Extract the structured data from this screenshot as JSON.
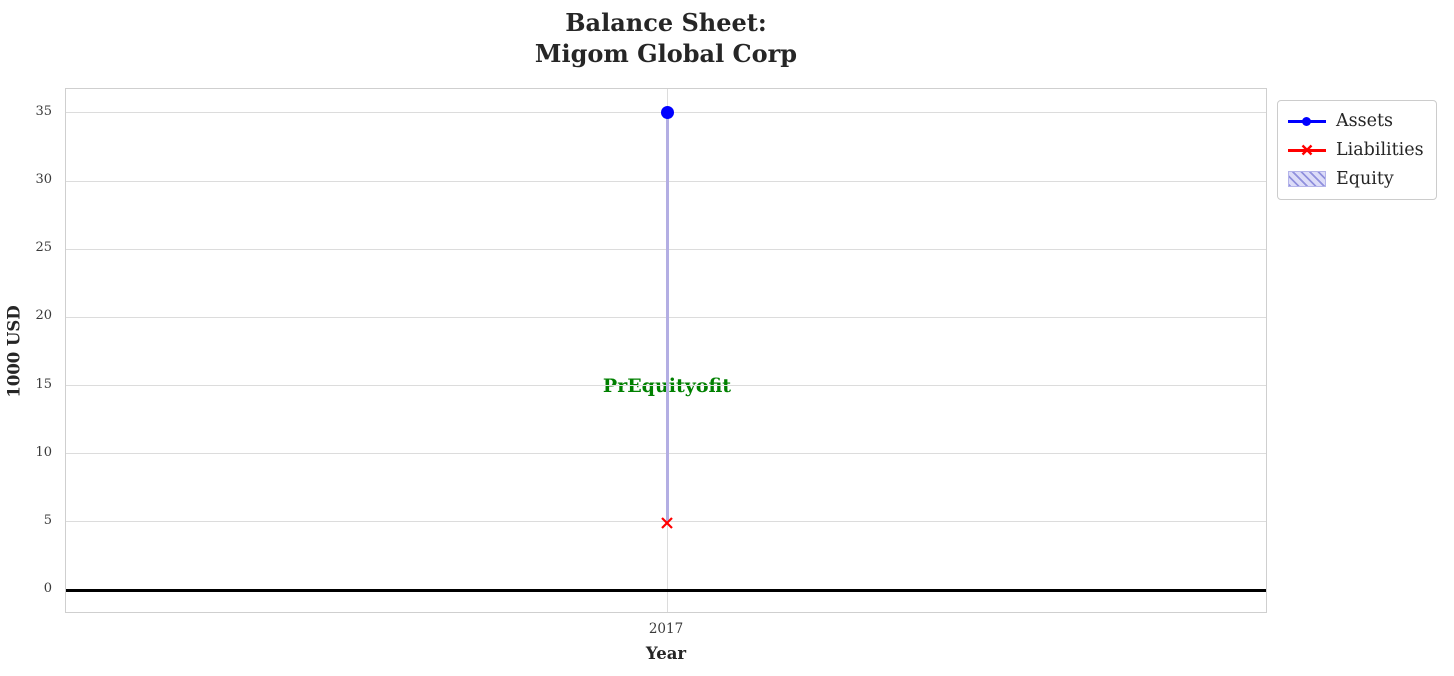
{
  "title": {
    "line1": "Balance Sheet:",
    "line2": "Migom Global Corp"
  },
  "chart_data": {
    "type": "line",
    "x": [
      2017
    ],
    "series": [
      {
        "name": "Assets",
        "values": [
          35
        ],
        "color": "#0000ff",
        "marker": "circle"
      },
      {
        "name": "Liabilities",
        "values": [
          5
        ],
        "color": "#ff0000",
        "marker": "x"
      },
      {
        "name": "Equity",
        "values": [
          30
        ],
        "color": "#b3aee3",
        "style": "hatched-band",
        "band": [
          5,
          35
        ]
      }
    ],
    "xlabel": "Year",
    "ylabel": "1000 USD",
    "xticks": [
      "2017"
    ],
    "yticks": [
      0,
      5,
      10,
      15,
      20,
      25,
      30,
      35
    ],
    "ylim": [
      -1.75,
      36.75
    ],
    "grid": true,
    "zero_line": {
      "value": 0,
      "color": "#000000"
    },
    "legend_position": "upper right, outside axes",
    "annotation": {
      "text": "PrEquityofit",
      "x": 2017,
      "y": 15,
      "color": "#008000"
    }
  },
  "colors": {
    "assets": "#0000ff",
    "liabilities": "#ff0000",
    "equity_fill": "#dcdcf8",
    "equity_hatch": "#9090dd",
    "annotation_green": "#008000",
    "grid": "#dcdcdc",
    "spine": "#cfcfcf",
    "zero_line": "#000000"
  }
}
